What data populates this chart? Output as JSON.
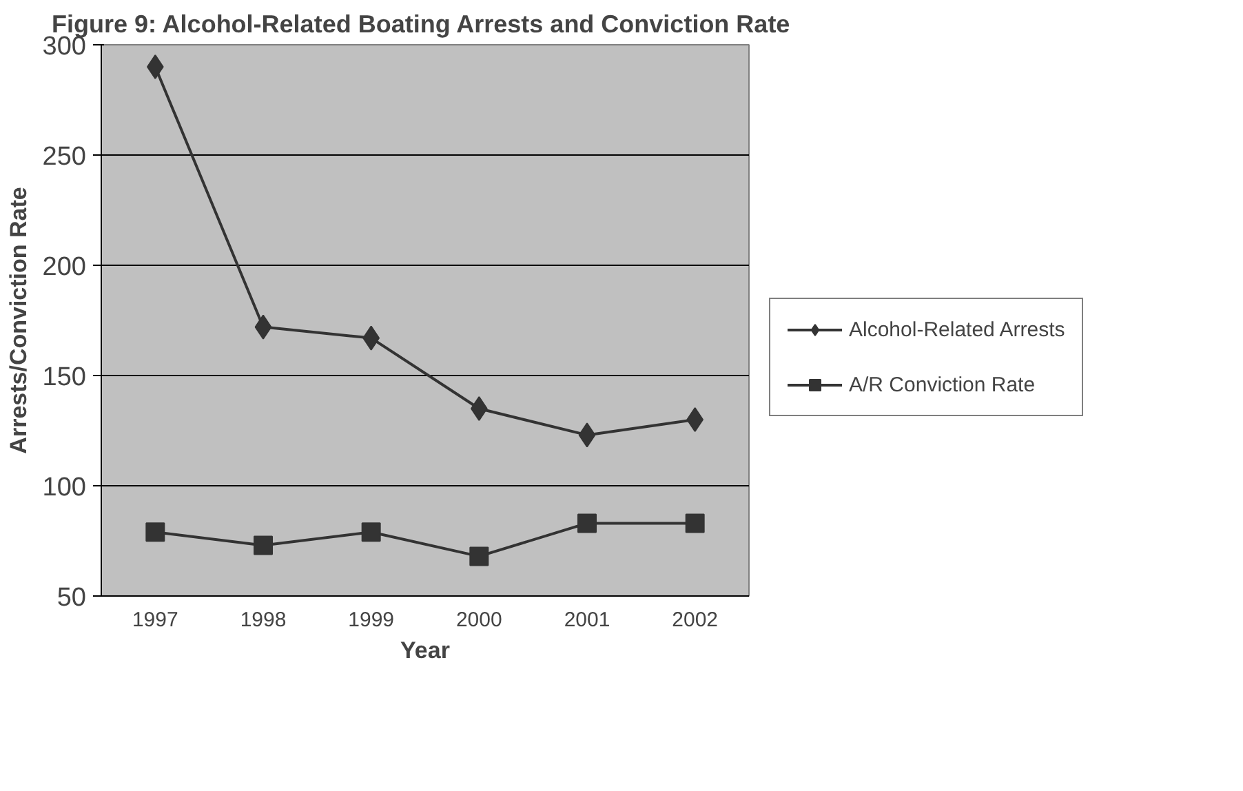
{
  "chart_data": {
    "type": "line",
    "title": "Figure 9:  Alcohol-Related Boating Arrests and Conviction Rate",
    "xlabel": "Year",
    "ylabel": "Arrests/Conviction Rate",
    "categories": [
      "1997",
      "1998",
      "1999",
      "2000",
      "2001",
      "2002"
    ],
    "series": [
      {
        "name": "Alcohol-Related Arrests",
        "color": "#333333",
        "marker": "diamond",
        "values": [
          290,
          172,
          167,
          135,
          123,
          130
        ]
      },
      {
        "name": "A/R Conviction Rate",
        "color": "#333333",
        "marker": "square",
        "values": [
          79,
          73,
          79,
          68,
          83,
          83
        ]
      }
    ],
    "ylim": [
      50,
      300
    ],
    "yticks": [
      50,
      100,
      150,
      200,
      250,
      300
    ],
    "grid": "y",
    "legend": "right",
    "line_style": "solid"
  }
}
